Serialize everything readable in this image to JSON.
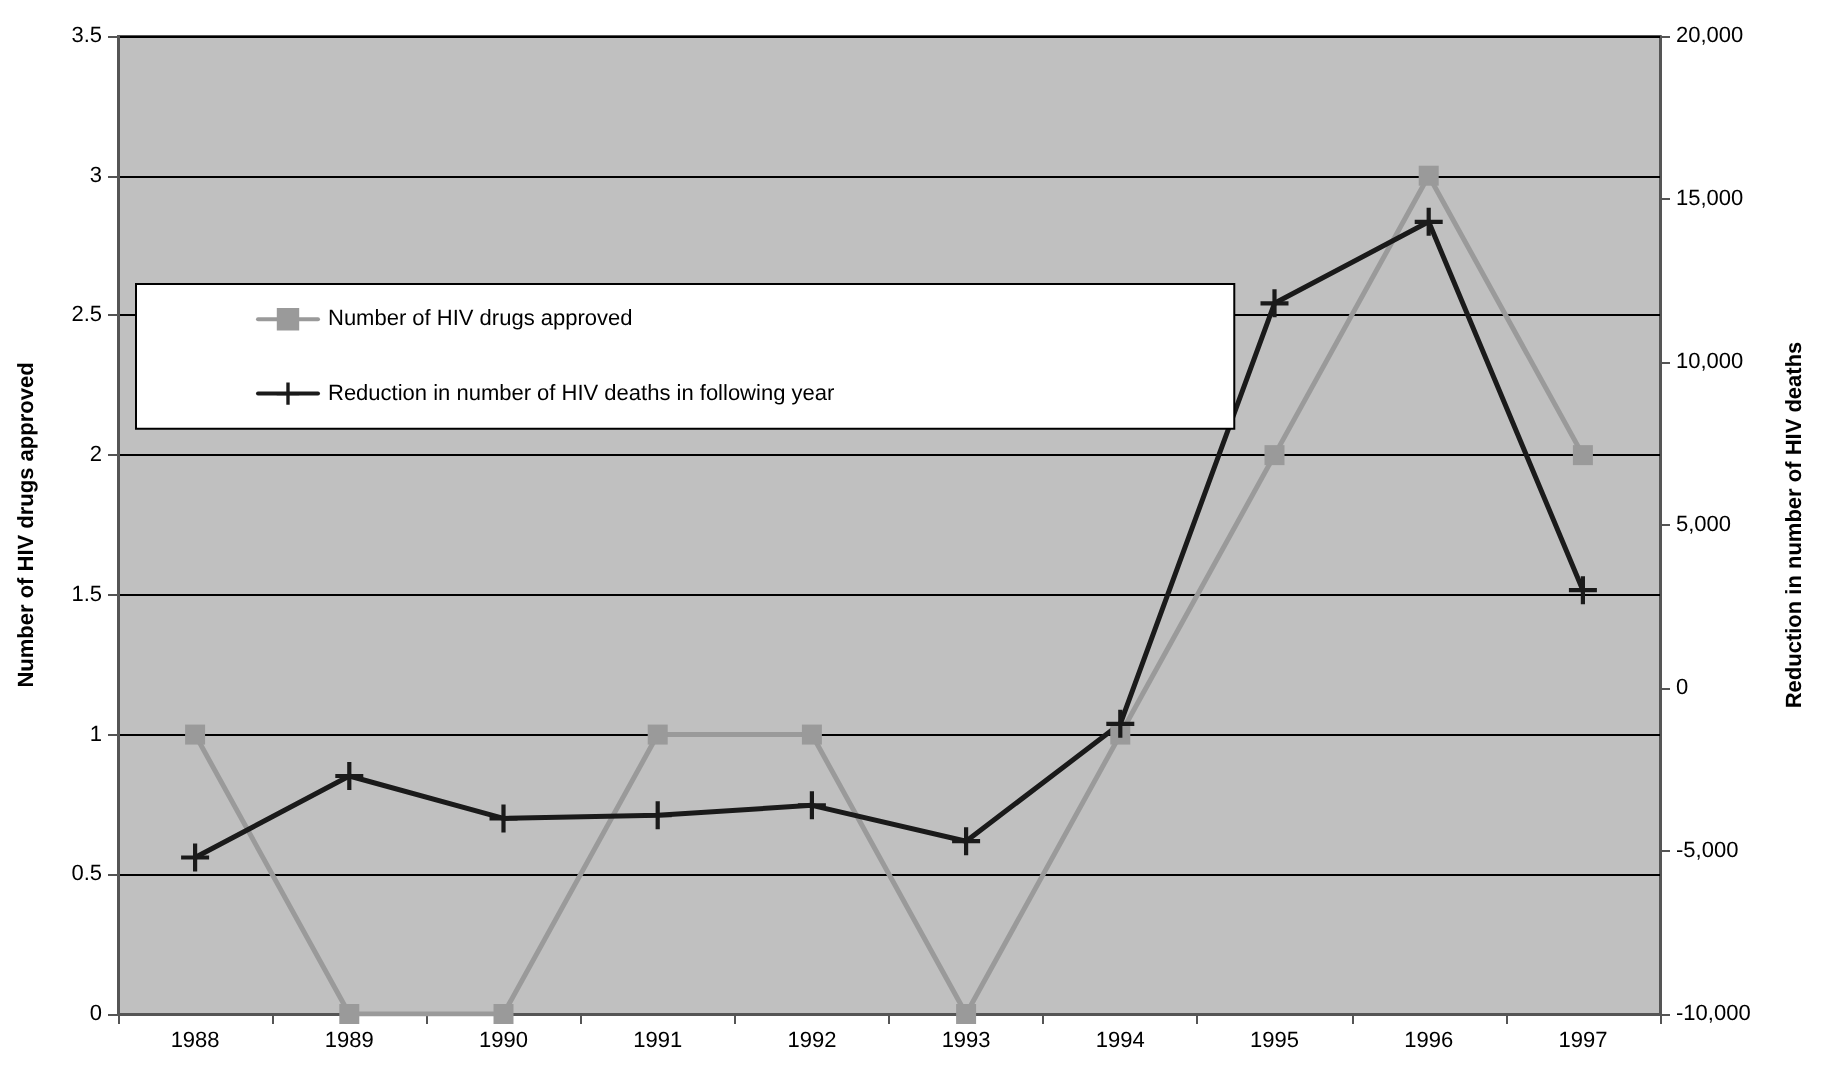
{
  "chart_data": {
    "type": "line",
    "categories": [
      "1988",
      "1989",
      "1990",
      "1991",
      "1992",
      "1993",
      "1994",
      "1995",
      "1996",
      "1997"
    ],
    "ylabel": "Number of HIV drugs approved",
    "y2label": "Reduction in number of HIV deaths",
    "ylim": [
      0,
      3.5
    ],
    "yticks": [
      0,
      0.5,
      1,
      1.5,
      2,
      2.5,
      3,
      3.5
    ],
    "y2lim": [
      -10000,
      20000
    ],
    "y2ticks": [
      {
        "value": -10000,
        "label": "-10,000"
      },
      {
        "value": -5000,
        "label": "-5,000"
      },
      0,
      {
        "value": 5000,
        "label": "5,000"
      },
      {
        "value": 10000,
        "label": "10,000"
      },
      {
        "value": 15000,
        "label": "15,000"
      },
      {
        "value": 20000,
        "label": "20,000"
      }
    ],
    "grid": "y",
    "legend": "top left",
    "series": [
      {
        "name": "Number of HIV drugs approved",
        "color": "#9a9a9a",
        "marker": "square",
        "values": [
          1,
          0,
          0,
          1,
          1,
          0,
          1,
          2,
          3,
          2
        ]
      },
      {
        "name": "Reduction in number of HIV deaths in following year",
        "color": "#1a1a1a",
        "marker": "cross",
        "axis": "y2",
        "values": [
          -5200,
          -2700,
          -4000,
          -3900,
          -3600,
          -4700,
          -1100,
          11800,
          14300,
          3000
        ]
      }
    ]
  }
}
